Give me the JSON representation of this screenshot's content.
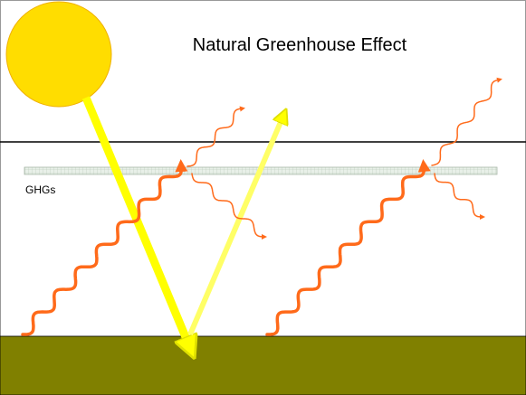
{
  "title": "Natural Greenhouse Effect",
  "labels": {
    "ghg": "GHGs"
  }
}
